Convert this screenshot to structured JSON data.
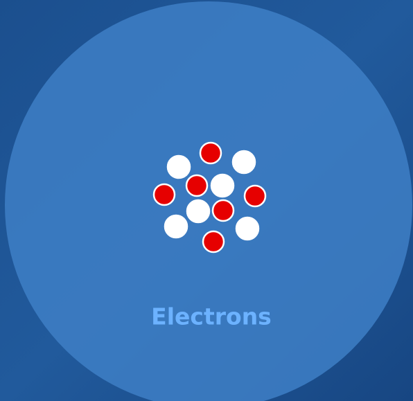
{
  "caption": "Electrons"
}
